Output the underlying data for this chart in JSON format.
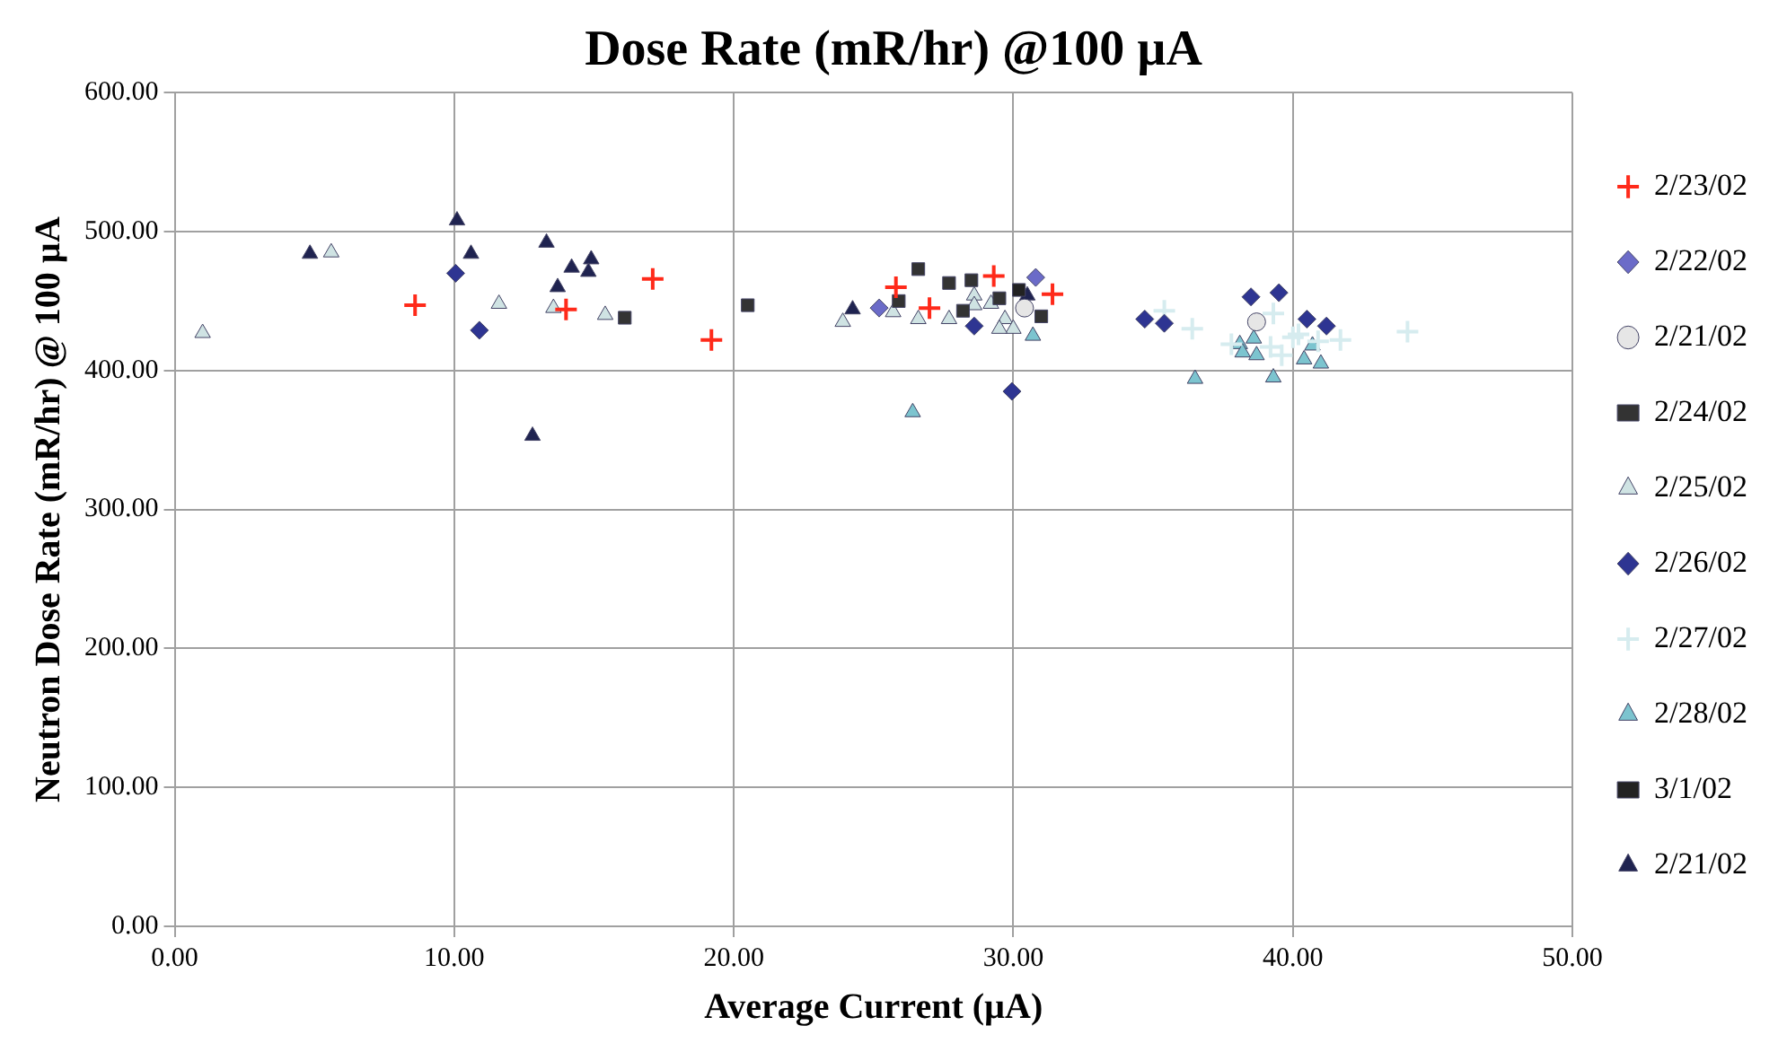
{
  "chart_data": {
    "type": "scatter",
    "title": "Dose Rate (mR/hr) @100 µA",
    "xlabel": "Average Current (µA)",
    "ylabel": "Neutron Dose Rate (mR/hr) @ 100 µA",
    "xlim": [
      0,
      50
    ],
    "ylim": [
      0,
      600
    ],
    "xticks": [
      {
        "value": 0,
        "label": "0.00"
      },
      {
        "value": 10,
        "label": "10.00"
      },
      {
        "value": 20,
        "label": "20.00"
      },
      {
        "value": 30,
        "label": "30.00"
      },
      {
        "value": 40,
        "label": "40.00"
      },
      {
        "value": 50,
        "label": "50.00"
      }
    ],
    "yticks": [
      {
        "value": 0,
        "label": "0.00"
      },
      {
        "value": 100,
        "label": "100.00"
      },
      {
        "value": 200,
        "label": "200.00"
      },
      {
        "value": 300,
        "label": "300.00"
      },
      {
        "value": 400,
        "label": "400.00"
      },
      {
        "value": 500,
        "label": "500.00"
      },
      {
        "value": 600,
        "label": "600.00"
      }
    ],
    "grid": true,
    "legend": "right",
    "series": [
      {
        "name": "2/23/02",
        "color": "#ff2a1a",
        "marker": "cross",
        "x": [
          8.6,
          14.0,
          17.1,
          19.2,
          25.8,
          27.0,
          29.3,
          31.4
        ],
        "values": [
          447,
          444,
          466,
          422,
          460,
          445,
          468,
          455
        ]
      },
      {
        "name": "2/22/02",
        "color": "#6b6bc8",
        "marker": "diamond",
        "x": [
          25.2,
          30.8
        ],
        "values": [
          445,
          467
        ]
      },
      {
        "name": "2/21/02",
        "color": "#e6e6e6",
        "marker": "circle",
        "x": [
          30.4,
          38.7
        ],
        "values": [
          445,
          435
        ]
      },
      {
        "name": "2/24/02",
        "color": "#333333",
        "marker": "square",
        "x": [
          16.1,
          20.5,
          26.6,
          25.9,
          27.7,
          28.5,
          28.2,
          29.5,
          31.0
        ],
        "values": [
          438,
          447,
          473,
          450,
          463,
          465,
          443,
          452,
          439
        ]
      },
      {
        "name": "2/25/02",
        "color": "#cfe3e3",
        "marker": "triangle",
        "x": [
          1.0,
          5.6,
          11.6,
          13.55,
          15.4,
          23.9,
          25.7,
          26.6,
          27.7,
          28.6,
          28.6,
          29.2,
          29.7,
          30.0,
          29.5
        ],
        "values": [
          427,
          485,
          448,
          445,
          440,
          435,
          442,
          437,
          437,
          454,
          447,
          448,
          437,
          430,
          430
        ]
      },
      {
        "name": "2/26/02",
        "color": "#2e3592",
        "marker": "diamond",
        "x": [
          10.05,
          10.9,
          28.6,
          29.95,
          34.7,
          35.4,
          38.5,
          39.5,
          40.5,
          41.2
        ],
        "values": [
          470,
          429,
          432,
          385,
          437,
          434,
          453,
          456,
          437,
          432
        ]
      },
      {
        "name": "2/27/02",
        "color": "#d6ecef",
        "marker": "cross",
        "x": [
          35.4,
          36.4,
          39.3,
          39.2,
          40.0,
          40.2,
          39.6,
          40.9,
          41.7,
          44.1,
          37.8
        ],
        "values": [
          443,
          430,
          441,
          417,
          424,
          426,
          411,
          421,
          422,
          428,
          419
        ]
      },
      {
        "name": "2/28/02",
        "color": "#7cc4cf",
        "marker": "triangle",
        "x": [
          36.5,
          38.1,
          38.2,
          38.7,
          38.6,
          39.3,
          40.4,
          40.7,
          41.0,
          26.4,
          30.7
        ],
        "values": [
          394,
          419,
          413,
          411,
          423,
          395,
          408,
          418,
          405,
          370,
          425
        ]
      },
      {
        "name": "3/1/02",
        "color": "#222222",
        "marker": "square",
        "x": [
          30.2
        ],
        "values": [
          458
        ]
      },
      {
        "name": "2/21/02",
        "color": "#1f2350",
        "marker": "triangle",
        "x": [
          10.1,
          4.84,
          10.6,
          13.3,
          14.2,
          14.9,
          14.8,
          13.7,
          12.8,
          24.25,
          30.5
        ],
        "values": [
          508,
          484,
          484,
          492,
          474,
          480,
          471,
          460,
          353,
          444,
          454
        ]
      }
    ]
  }
}
